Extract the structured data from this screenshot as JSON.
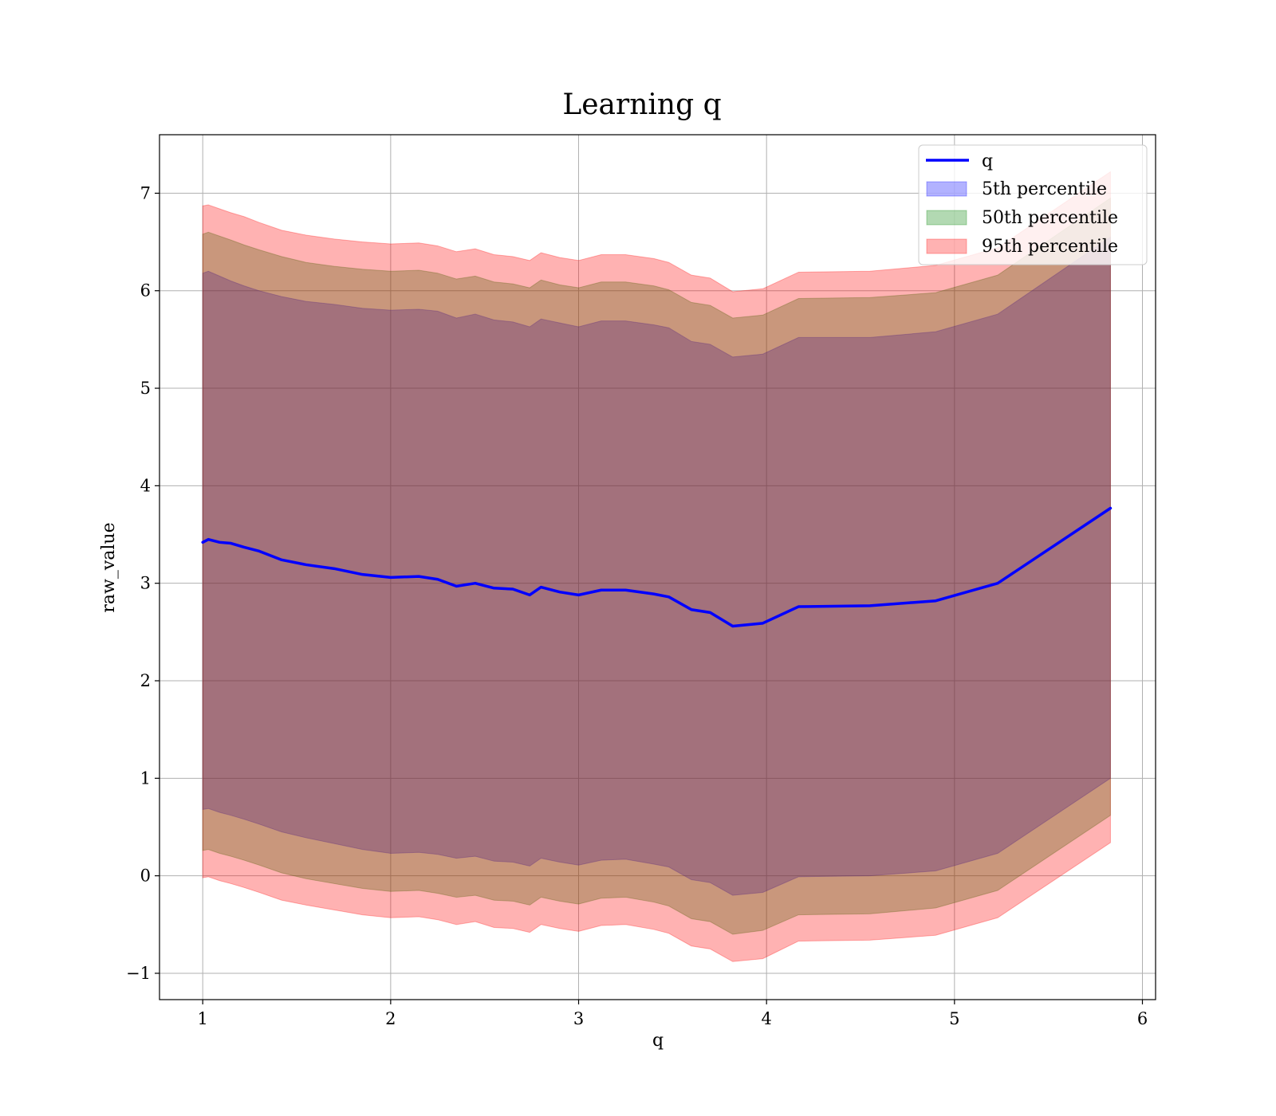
{
  "chart_data": {
    "type": "area",
    "title": "Learning q",
    "xlabel": "q",
    "ylabel": "raw_value",
    "xlim": [
      0.77,
      6.07
    ],
    "ylim": [
      -1.27,
      7.6
    ],
    "xticks": [
      1,
      2,
      3,
      4,
      5,
      6
    ],
    "yticks": [
      -1,
      0,
      1,
      2,
      3,
      4,
      5,
      6,
      7
    ],
    "grid": true,
    "legend_placement": "top-right",
    "x": [
      1.0,
      1.03,
      1.09,
      1.15,
      1.22,
      1.3,
      1.42,
      1.55,
      1.7,
      1.85,
      2.0,
      2.15,
      2.25,
      2.35,
      2.45,
      2.55,
      2.65,
      2.74,
      2.8,
      2.9,
      3.0,
      3.12,
      3.25,
      3.4,
      3.48,
      3.6,
      3.7,
      3.82,
      3.98,
      4.17,
      4.55,
      4.9,
      5.23,
      5.83
    ],
    "series": [
      {
        "name": "q",
        "color": "#0000ff",
        "values": [
          3.42,
          3.45,
          3.42,
          3.41,
          3.37,
          3.33,
          3.24,
          3.19,
          3.15,
          3.09,
          3.06,
          3.07,
          3.04,
          2.97,
          3.0,
          2.95,
          2.94,
          2.88,
          2.96,
          2.91,
          2.88,
          2.93,
          2.93,
          2.89,
          2.86,
          2.73,
          2.7,
          2.56,
          2.59,
          2.76,
          2.77,
          2.82,
          3.0,
          3.77
        ]
      },
      {
        "name": "5th percentile",
        "color": "#0000ff",
        "lower": [
          0.68,
          0.69,
          0.65,
          0.62,
          0.58,
          0.53,
          0.45,
          0.39,
          0.33,
          0.27,
          0.23,
          0.24,
          0.22,
          0.18,
          0.2,
          0.15,
          0.14,
          0.1,
          0.18,
          0.14,
          0.11,
          0.16,
          0.17,
          0.12,
          0.09,
          -0.04,
          -0.07,
          -0.2,
          -0.17,
          -0.01,
          0.0,
          0.05,
          0.23,
          1.0
        ],
        "upper": [
          6.18,
          6.2,
          6.15,
          6.1,
          6.05,
          6.0,
          5.94,
          5.89,
          5.86,
          5.82,
          5.8,
          5.81,
          5.79,
          5.72,
          5.76,
          5.7,
          5.68,
          5.63,
          5.71,
          5.67,
          5.63,
          5.69,
          5.69,
          5.65,
          5.62,
          5.48,
          5.45,
          5.32,
          5.35,
          5.52,
          5.52,
          5.58,
          5.76,
          6.55
        ]
      },
      {
        "name": "50th percentile",
        "color": "#008000",
        "lower": [
          0.26,
          0.27,
          0.23,
          0.2,
          0.16,
          0.11,
          0.03,
          -0.03,
          -0.08,
          -0.13,
          -0.16,
          -0.15,
          -0.18,
          -0.22,
          -0.2,
          -0.25,
          -0.26,
          -0.3,
          -0.22,
          -0.26,
          -0.29,
          -0.23,
          -0.22,
          -0.27,
          -0.31,
          -0.44,
          -0.47,
          -0.6,
          -0.56,
          -0.4,
          -0.39,
          -0.33,
          -0.15,
          0.62
        ],
        "upper": [
          6.58,
          6.6,
          6.56,
          6.52,
          6.47,
          6.42,
          6.35,
          6.29,
          6.25,
          6.22,
          6.2,
          6.21,
          6.18,
          6.12,
          6.15,
          6.09,
          6.07,
          6.03,
          6.11,
          6.06,
          6.03,
          6.09,
          6.09,
          6.05,
          6.01,
          5.88,
          5.85,
          5.72,
          5.75,
          5.92,
          5.93,
          5.98,
          6.16,
          6.95
        ]
      },
      {
        "name": "95th percentile",
        "color": "#ff0000",
        "lower": [
          -0.02,
          -0.01,
          -0.05,
          -0.08,
          -0.12,
          -0.17,
          -0.25,
          -0.3,
          -0.35,
          -0.4,
          -0.43,
          -0.42,
          -0.45,
          -0.5,
          -0.47,
          -0.53,
          -0.54,
          -0.58,
          -0.5,
          -0.54,
          -0.57,
          -0.51,
          -0.5,
          -0.55,
          -0.59,
          -0.72,
          -0.75,
          -0.88,
          -0.85,
          -0.67,
          -0.66,
          -0.61,
          -0.43,
          0.34
        ],
        "upper": [
          6.87,
          6.88,
          6.84,
          6.8,
          6.76,
          6.7,
          6.62,
          6.57,
          6.53,
          6.5,
          6.48,
          6.49,
          6.46,
          6.4,
          6.43,
          6.37,
          6.35,
          6.31,
          6.39,
          6.34,
          6.31,
          6.37,
          6.37,
          6.33,
          6.29,
          6.16,
          6.13,
          5.99,
          6.02,
          6.19,
          6.2,
          6.26,
          6.44,
          7.22
        ]
      }
    ]
  }
}
